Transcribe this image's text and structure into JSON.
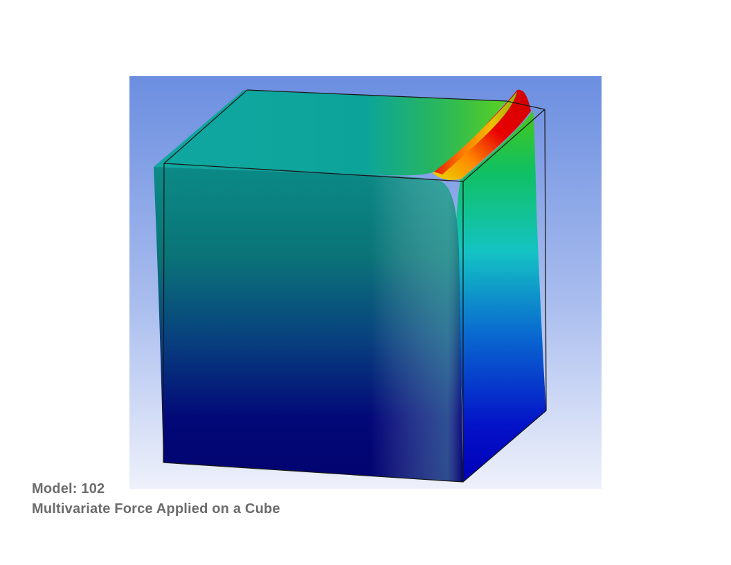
{
  "figure": {
    "subject": "Deformed cube under applied force, colored by deformation magnitude",
    "colors": {
      "background_top": "#6b8ee0",
      "background_bottom": "#eef1fb",
      "outline": "#1a1a1a",
      "low": "#00007a",
      "mid_low": "#0a3c96",
      "mid": "#008a8a",
      "mid_high": "#19c0c0",
      "high_green": "#22c822",
      "high_yellow": "#f2e600",
      "max": "#e60000"
    }
  },
  "caption": {
    "model_label": "Model: 102",
    "title": "Multivariate Force Applied on a Cube"
  }
}
